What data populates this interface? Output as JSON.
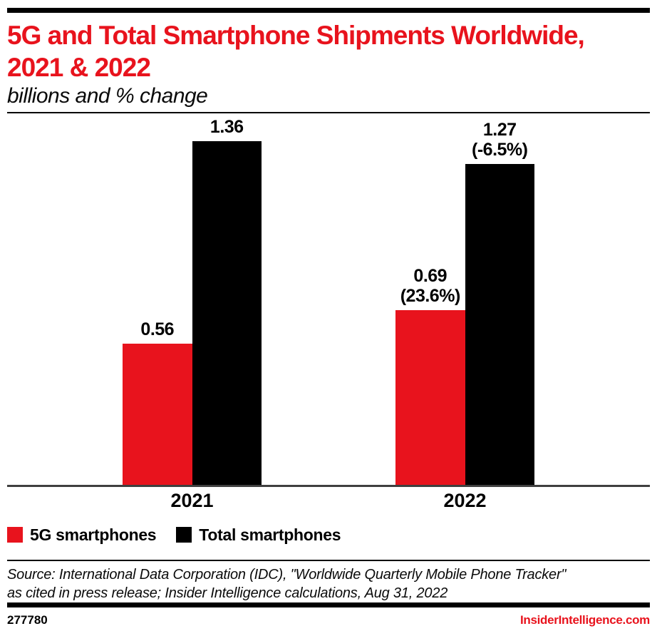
{
  "header": {
    "title_lines": [
      "5G and Total Smartphone Shipments Worldwide,",
      "2021 & 2022"
    ],
    "title": "5G and Total Smartphone Shipments Worldwide, 2021 & 2022",
    "subtitle": "billions and % change"
  },
  "chart_data": {
    "type": "bar",
    "title": "5G and Total Smartphone Shipments Worldwide, 2021 & 2022",
    "subtitle": "billions and % change",
    "unit": "billions",
    "categories": [
      "2021",
      "2022"
    ],
    "series": [
      {
        "name": "5G smartphones",
        "color": "#e8131d",
        "values": [
          0.56,
          0.69
        ],
        "bar_labels": [
          [
            "0.56"
          ],
          [
            "0.69",
            "(23.6%)"
          ]
        ],
        "pct_change": [
          null,
          23.6
        ]
      },
      {
        "name": "Total smartphones",
        "color": "#000000",
        "values": [
          1.36,
          1.27
        ],
        "bar_labels": [
          [
            "1.36"
          ],
          [
            "1.27",
            "(-6.5%)"
          ]
        ],
        "pct_change": [
          null,
          -6.5
        ]
      }
    ],
    "ylim": [
      0,
      1.47
    ],
    "y_axis_visible": false,
    "grid": false,
    "legend_position": "bottom-left"
  },
  "source": {
    "lines": [
      "Source: International Data Corporation (IDC), \"Worldwide Quarterly Mobile Phone Tracker\"",
      "as cited in press release; Insider Intelligence calculations, Aug 31, 2022"
    ]
  },
  "footer": {
    "chart_number": "277780",
    "site": "InsiderIntelligence.com"
  },
  "colors": {
    "brand_red": "#e8131d",
    "black": "#000000",
    "baseline_gray": "#3f3f3f"
  }
}
